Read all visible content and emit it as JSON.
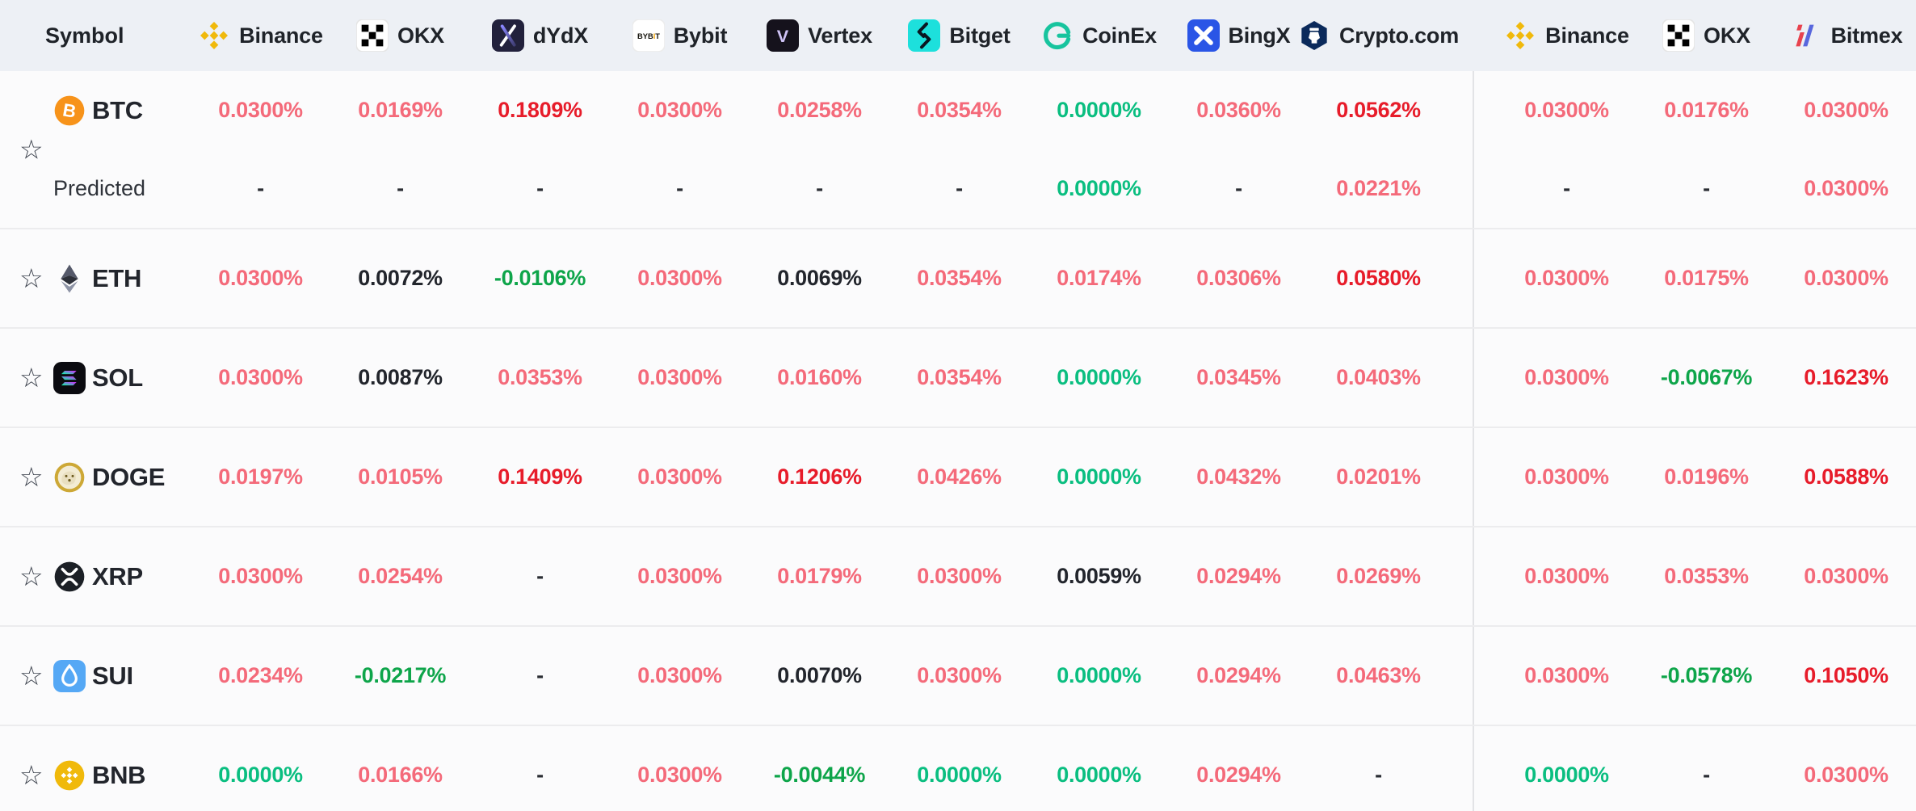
{
  "header": {
    "symbol_label": "Symbol",
    "columns": [
      {
        "label": "Binance",
        "icon": "binance-icon"
      },
      {
        "label": "OKX",
        "icon": "okx-icon"
      },
      {
        "label": "dYdX",
        "icon": "dydx-icon"
      },
      {
        "label": "Bybit",
        "icon": "bybit-icon"
      },
      {
        "label": "Vertex",
        "icon": "vertex-icon"
      },
      {
        "label": "Bitget",
        "icon": "bitget-icon"
      },
      {
        "label": "CoinEx",
        "icon": "coinex-icon"
      },
      {
        "label": "BingX",
        "icon": "bingx-icon"
      },
      {
        "label": "Crypto.com",
        "icon": "cryptocom-icon"
      },
      {
        "label": "Binance",
        "icon": "binance-icon"
      },
      {
        "label": "OKX",
        "icon": "okx-icon"
      },
      {
        "label": "Bitmex",
        "icon": "bitmex-icon"
      }
    ]
  },
  "colors": {
    "pink": "#f46a7a",
    "red": "#e71c2a",
    "teal": "#0abe80",
    "green": "#0ea54a",
    "dark": "#22252c",
    "header_bg": "#edf0f5"
  },
  "rows": [
    {
      "symbol": "BTC",
      "icon": "btc-icon",
      "predicted_label": "Predicted",
      "values": [
        {
          "text": "0.0300%",
          "tone": "pink"
        },
        {
          "text": "0.0169%",
          "tone": "pink"
        },
        {
          "text": "0.1809%",
          "tone": "red"
        },
        {
          "text": "0.0300%",
          "tone": "pink"
        },
        {
          "text": "0.0258%",
          "tone": "pink"
        },
        {
          "text": "0.0354%",
          "tone": "pink"
        },
        {
          "text": "0.0000%",
          "tone": "teal"
        },
        {
          "text": "0.0360%",
          "tone": "pink"
        },
        {
          "text": "0.0562%",
          "tone": "red"
        },
        {
          "text": "0.0300%",
          "tone": "pink"
        },
        {
          "text": "0.0176%",
          "tone": "pink"
        },
        {
          "text": "0.0300%",
          "tone": "pink"
        }
      ],
      "predicted": [
        {
          "text": "-",
          "tone": "dash"
        },
        {
          "text": "-",
          "tone": "dash"
        },
        {
          "text": "-",
          "tone": "dash"
        },
        {
          "text": "-",
          "tone": "dash"
        },
        {
          "text": "-",
          "tone": "dash"
        },
        {
          "text": "-",
          "tone": "dash"
        },
        {
          "text": "0.0000%",
          "tone": "teal"
        },
        {
          "text": "-",
          "tone": "dash"
        },
        {
          "text": "0.0221%",
          "tone": "pink"
        },
        {
          "text": "-",
          "tone": "dash"
        },
        {
          "text": "-",
          "tone": "dash"
        },
        {
          "text": "0.0300%",
          "tone": "pink"
        }
      ]
    },
    {
      "symbol": "ETH",
      "icon": "eth-icon",
      "values": [
        {
          "text": "0.0300%",
          "tone": "pink"
        },
        {
          "text": "0.0072%",
          "tone": "dark"
        },
        {
          "text": "-0.0106%",
          "tone": "green"
        },
        {
          "text": "0.0300%",
          "tone": "pink"
        },
        {
          "text": "0.0069%",
          "tone": "dark"
        },
        {
          "text": "0.0354%",
          "tone": "pink"
        },
        {
          "text": "0.0174%",
          "tone": "pink"
        },
        {
          "text": "0.0306%",
          "tone": "pink"
        },
        {
          "text": "0.0580%",
          "tone": "red"
        },
        {
          "text": "0.0300%",
          "tone": "pink"
        },
        {
          "text": "0.0175%",
          "tone": "pink"
        },
        {
          "text": "0.0300%",
          "tone": "pink"
        }
      ]
    },
    {
      "symbol": "SOL",
      "icon": "sol-icon",
      "values": [
        {
          "text": "0.0300%",
          "tone": "pink"
        },
        {
          "text": "0.0087%",
          "tone": "dark"
        },
        {
          "text": "0.0353%",
          "tone": "pink"
        },
        {
          "text": "0.0300%",
          "tone": "pink"
        },
        {
          "text": "0.0160%",
          "tone": "pink"
        },
        {
          "text": "0.0354%",
          "tone": "pink"
        },
        {
          "text": "0.0000%",
          "tone": "teal"
        },
        {
          "text": "0.0345%",
          "tone": "pink"
        },
        {
          "text": "0.0403%",
          "tone": "pink"
        },
        {
          "text": "0.0300%",
          "tone": "pink"
        },
        {
          "text": "-0.0067%",
          "tone": "green"
        },
        {
          "text": "0.1623%",
          "tone": "red"
        }
      ]
    },
    {
      "symbol": "DOGE",
      "icon": "doge-icon",
      "values": [
        {
          "text": "0.0197%",
          "tone": "pink"
        },
        {
          "text": "0.0105%",
          "tone": "pink"
        },
        {
          "text": "0.1409%",
          "tone": "red"
        },
        {
          "text": "0.0300%",
          "tone": "pink"
        },
        {
          "text": "0.1206%",
          "tone": "red"
        },
        {
          "text": "0.0426%",
          "tone": "pink"
        },
        {
          "text": "0.0000%",
          "tone": "teal"
        },
        {
          "text": "0.0432%",
          "tone": "pink"
        },
        {
          "text": "0.0201%",
          "tone": "pink"
        },
        {
          "text": "0.0300%",
          "tone": "pink"
        },
        {
          "text": "0.0196%",
          "tone": "pink"
        },
        {
          "text": "0.0588%",
          "tone": "red"
        }
      ]
    },
    {
      "symbol": "XRP",
      "icon": "xrp-icon",
      "values": [
        {
          "text": "0.0300%",
          "tone": "pink"
        },
        {
          "text": "0.0254%",
          "tone": "pink"
        },
        {
          "text": "-",
          "tone": "dash"
        },
        {
          "text": "0.0300%",
          "tone": "pink"
        },
        {
          "text": "0.0179%",
          "tone": "pink"
        },
        {
          "text": "0.0300%",
          "tone": "pink"
        },
        {
          "text": "0.0059%",
          "tone": "dark"
        },
        {
          "text": "0.0294%",
          "tone": "pink"
        },
        {
          "text": "0.0269%",
          "tone": "pink"
        },
        {
          "text": "0.0300%",
          "tone": "pink"
        },
        {
          "text": "0.0353%",
          "tone": "pink"
        },
        {
          "text": "0.0300%",
          "tone": "pink"
        }
      ]
    },
    {
      "symbol": "SUI",
      "icon": "sui-icon",
      "values": [
        {
          "text": "0.0234%",
          "tone": "pink"
        },
        {
          "text": "-0.0217%",
          "tone": "green"
        },
        {
          "text": "-",
          "tone": "dash"
        },
        {
          "text": "0.0300%",
          "tone": "pink"
        },
        {
          "text": "0.0070%",
          "tone": "dark"
        },
        {
          "text": "0.0300%",
          "tone": "pink"
        },
        {
          "text": "0.0000%",
          "tone": "teal"
        },
        {
          "text": "0.0294%",
          "tone": "pink"
        },
        {
          "text": "0.0463%",
          "tone": "pink"
        },
        {
          "text": "0.0300%",
          "tone": "pink"
        },
        {
          "text": "-0.0578%",
          "tone": "green"
        },
        {
          "text": "0.1050%",
          "tone": "red"
        }
      ]
    },
    {
      "symbol": "BNB",
      "icon": "bnb-icon",
      "values": [
        {
          "text": "0.0000%",
          "tone": "teal"
        },
        {
          "text": "0.0166%",
          "tone": "pink"
        },
        {
          "text": "-",
          "tone": "dash"
        },
        {
          "text": "0.0300%",
          "tone": "pink"
        },
        {
          "text": "-0.0044%",
          "tone": "green"
        },
        {
          "text": "0.0000%",
          "tone": "teal"
        },
        {
          "text": "0.0000%",
          "tone": "teal"
        },
        {
          "text": "0.0294%",
          "tone": "pink"
        },
        {
          "text": "-",
          "tone": "dash"
        },
        {
          "text": "0.0000%",
          "tone": "teal"
        },
        {
          "text": "-",
          "tone": "dash"
        },
        {
          "text": "0.0300%",
          "tone": "pink"
        }
      ]
    }
  ]
}
